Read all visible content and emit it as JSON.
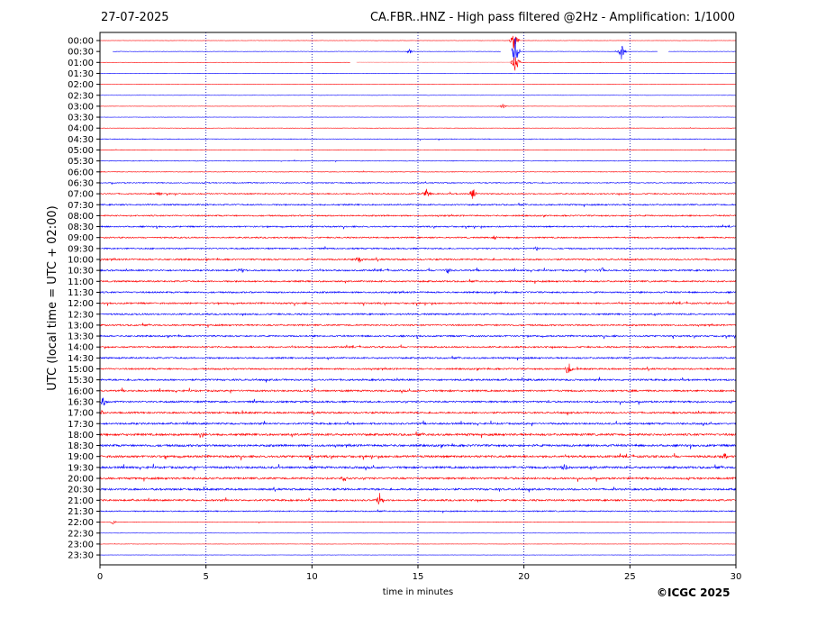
{
  "header": {
    "date": "27-07-2025",
    "title": "CA.FBR..HNZ - High pass filtered @2Hz - Amplification: 1/1000"
  },
  "footer": {
    "copyright": "©ICGC 2025"
  },
  "colors": {
    "red": "#ff0000",
    "blue": "#0000ff",
    "grid": "#0000aa",
    "axis": "#000000"
  },
  "chart_data": {
    "type": "line",
    "xlabel": "time in minutes",
    "ylabel": "UTC (local time = UTC + 02:00)",
    "xlim": [
      0,
      30
    ],
    "x_ticks": [
      0,
      5,
      10,
      15,
      20,
      25,
      30
    ],
    "grid": "vertical dotted lines at 5-minute intervals",
    "trace_color_pattern": [
      "red",
      "blue"
    ],
    "rows": [
      "00:00",
      "00:30",
      "01:00",
      "01:30",
      "02:00",
      "02:30",
      "03:00",
      "03:30",
      "04:00",
      "04:30",
      "05:00",
      "05:30",
      "06:00",
      "06:30",
      "07:00",
      "07:30",
      "08:00",
      "08:30",
      "09:00",
      "09:30",
      "10:00",
      "10:30",
      "11:00",
      "11:30",
      "12:00",
      "12:30",
      "13:00",
      "13:30",
      "14:00",
      "14:30",
      "15:00",
      "15:30",
      "16:00",
      "16:30",
      "17:00",
      "17:30",
      "18:00",
      "18:30",
      "19:00",
      "19:30",
      "20:00",
      "20:30",
      "21:00",
      "21:30",
      "22:00",
      "22:30",
      "23:00",
      "23:30"
    ],
    "noise_level": [
      0.3,
      0.4,
      0.3,
      0.3,
      0.3,
      0.3,
      0.3,
      0.3,
      0.4,
      0.7,
      0.6,
      0.6,
      0.6,
      1.0,
      1.2,
      1.4,
      1.4,
      1.4,
      1.4,
      1.4,
      1.6,
      1.6,
      1.6,
      1.6,
      1.6,
      1.6,
      1.6,
      1.6,
      1.6,
      1.6,
      1.6,
      1.8,
      1.8,
      1.8,
      1.8,
      1.8,
      2.2,
      2.2,
      2.2,
      2.2,
      2.0,
      2.0,
      1.8,
      1.2,
      0.5,
      0.3,
      0.3,
      0.3
    ],
    "events": [
      {
        "row": 0,
        "x": 19.55,
        "amp": 14
      },
      {
        "row": 1,
        "x": 19.6,
        "amp": 20
      },
      {
        "row": 1,
        "x": 24.6,
        "amp": 9
      },
      {
        "row": 1,
        "x": 14.6,
        "amp": 3
      },
      {
        "row": 2,
        "x": 19.6,
        "amp": 13
      },
      {
        "row": 6,
        "x": 19.0,
        "amp": 3
      },
      {
        "row": 14,
        "x": 15.4,
        "amp": 6
      },
      {
        "row": 14,
        "x": 17.6,
        "amp": 9
      },
      {
        "row": 14,
        "x": 2.8,
        "amp": 3
      },
      {
        "row": 18,
        "x": 18.6,
        "amp": 3
      },
      {
        "row": 19,
        "x": 20.6,
        "amp": 3
      },
      {
        "row": 20,
        "x": 12.2,
        "amp": 5
      },
      {
        "row": 21,
        "x": 6.7,
        "amp": 4
      },
      {
        "row": 21,
        "x": 16.4,
        "amp": 4
      },
      {
        "row": 21,
        "x": 23.7,
        "amp": 4
      },
      {
        "row": 30,
        "x": 22.1,
        "amp": 10
      },
      {
        "row": 33,
        "x": 0.15,
        "amp": 6
      },
      {
        "row": 34,
        "x": 0.1,
        "amp": 4
      },
      {
        "row": 36,
        "x": 4.8,
        "amp": 6
      },
      {
        "row": 38,
        "x": 29.5,
        "amp": 4
      },
      {
        "row": 39,
        "x": 21.9,
        "amp": 5
      },
      {
        "row": 40,
        "x": 11.5,
        "amp": 5
      },
      {
        "row": 42,
        "x": 13.2,
        "amp": 9
      },
      {
        "row": 44,
        "x": 0.6,
        "amp": 3
      }
    ],
    "gaps": [
      {
        "row": 1,
        "from": 0.0,
        "to": 0.6
      },
      {
        "row": 1,
        "from": 18.9,
        "to": 19.4
      },
      {
        "row": 1,
        "from": 26.3,
        "to": 26.8
      },
      {
        "row": 2,
        "from": 11.8,
        "to": 12.1
      }
    ],
    "gap_bands": [
      {
        "row": 2,
        "from": 12.1,
        "to": 19.5
      }
    ]
  }
}
